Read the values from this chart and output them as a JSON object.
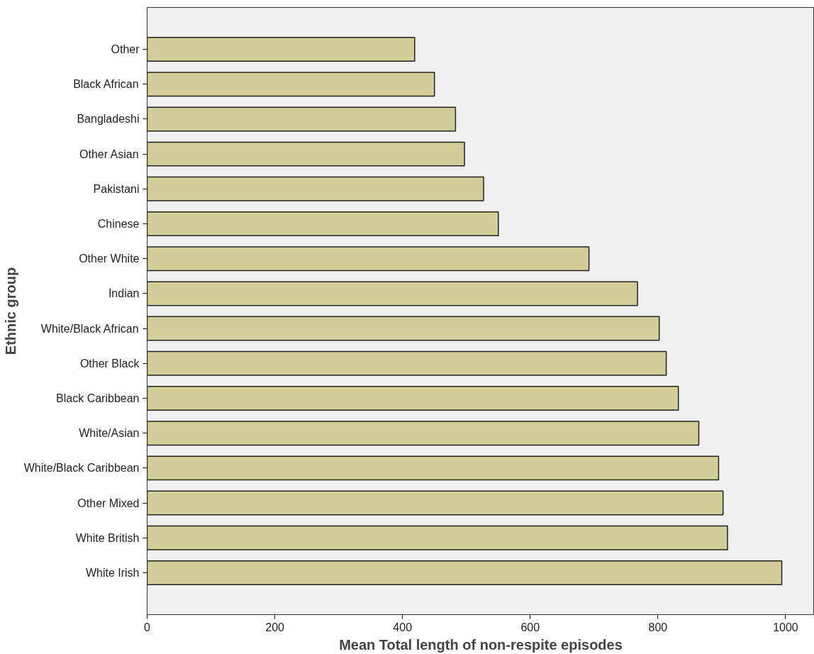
{
  "chart_data": {
    "type": "bar",
    "orientation": "horizontal",
    "xlabel": "Mean Total length of non-respite episodes",
    "ylabel": "Ethnic group",
    "categories": [
      "Other",
      "Black African",
      "Bangladeshi",
      "Other Asian",
      "Pakistani",
      "Chinese",
      "Other White",
      "Indian",
      "White/Black African",
      "Other Black",
      "Black Caribbean",
      "White/Asian",
      "White/Black Caribbean",
      "Other Mixed",
      "White British",
      "White Irish"
    ],
    "values": [
      419,
      450,
      483,
      497,
      527,
      550,
      692,
      768,
      802,
      813,
      832,
      864,
      895,
      902,
      909,
      994
    ],
    "color": "#d3ce97",
    "xlim": [
      0,
      1045
    ],
    "xticks": [
      0,
      200,
      400,
      600,
      800,
      1000
    ],
    "grid": false
  }
}
